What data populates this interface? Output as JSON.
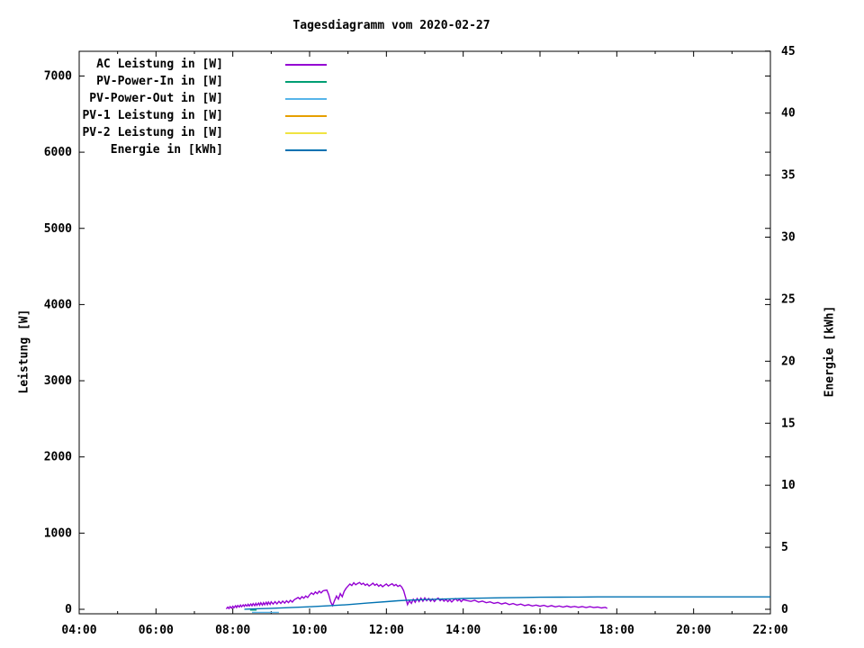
{
  "window": {
    "background": "#ffffff"
  },
  "chart_data": {
    "type": "line",
    "title": "Tagesdiagramm vom 2020-02-27",
    "ylabel": "Leistung [W]",
    "y2label": "Energie [kWh]",
    "grid": false,
    "legend_position": "top-left-inside",
    "x_axis": {
      "unit": "time of day",
      "range_hours": [
        4,
        22
      ],
      "tick_hours": [
        4,
        6,
        8,
        10,
        12,
        14,
        16,
        18,
        20,
        22
      ],
      "tick_labels": [
        "04:00",
        "06:00",
        "08:00",
        "10:00",
        "12:00",
        "14:00",
        "16:00",
        "18:00",
        "20:00",
        "22:00"
      ],
      "minor_tick_hours": [
        5,
        7,
        9,
        11,
        13,
        15,
        17,
        19,
        21
      ]
    },
    "y_axis": {
      "label": "Leistung [W]",
      "ticks": [
        0,
        1000,
        2000,
        3000,
        4000,
        5000,
        6000,
        7000
      ],
      "range": [
        -60,
        7330
      ]
    },
    "y2_axis": {
      "label": "Energie [kWh]",
      "ticks": [
        0,
        5,
        10,
        15,
        20,
        25,
        30,
        35,
        40,
        45
      ],
      "range": [
        -0.4,
        45
      ]
    },
    "series": [
      {
        "name": "AC Leistung in [W]",
        "color": "#9400d3",
        "axis": "y1",
        "points": [
          [
            7.83,
            5
          ],
          [
            7.87,
            28
          ],
          [
            7.9,
            10
          ],
          [
            7.93,
            35
          ],
          [
            7.97,
            15
          ],
          [
            8.0,
            40
          ],
          [
            8.03,
            20
          ],
          [
            8.07,
            46
          ],
          [
            8.1,
            24
          ],
          [
            8.13,
            50
          ],
          [
            8.17,
            30
          ],
          [
            8.2,
            55
          ],
          [
            8.23,
            34
          ],
          [
            8.27,
            58
          ],
          [
            8.3,
            38
          ],
          [
            8.33,
            62
          ],
          [
            8.37,
            42
          ],
          [
            8.4,
            66
          ],
          [
            8.43,
            44
          ],
          [
            8.47,
            70
          ],
          [
            8.5,
            46
          ],
          [
            8.53,
            74
          ],
          [
            8.57,
            48
          ],
          [
            8.6,
            78
          ],
          [
            8.63,
            52
          ],
          [
            8.67,
            82
          ],
          [
            8.7,
            54
          ],
          [
            8.73,
            86
          ],
          [
            8.77,
            56
          ],
          [
            8.8,
            88
          ],
          [
            8.83,
            60
          ],
          [
            8.87,
            92
          ],
          [
            8.9,
            62
          ],
          [
            8.93,
            95
          ],
          [
            8.97,
            64
          ],
          [
            9.0,
            98
          ],
          [
            9.05,
            68
          ],
          [
            9.1,
            100
          ],
          [
            9.15,
            72
          ],
          [
            9.2,
            104
          ],
          [
            9.25,
            78
          ],
          [
            9.3,
            108
          ],
          [
            9.35,
            82
          ],
          [
            9.4,
            112
          ],
          [
            9.45,
            88
          ],
          [
            9.5,
            118
          ],
          [
            9.55,
            95
          ],
          [
            9.6,
            125
          ],
          [
            9.65,
            140
          ],
          [
            9.7,
            155
          ],
          [
            9.75,
            135
          ],
          [
            9.8,
            165
          ],
          [
            9.85,
            145
          ],
          [
            9.9,
            175
          ],
          [
            9.95,
            155
          ],
          [
            10.0,
            190
          ],
          [
            10.05,
            215
          ],
          [
            10.1,
            195
          ],
          [
            10.15,
            228
          ],
          [
            10.2,
            205
          ],
          [
            10.25,
            238
          ],
          [
            10.3,
            215
          ],
          [
            10.35,
            242
          ],
          [
            10.4,
            248
          ],
          [
            10.45,
            252
          ],
          [
            10.5,
            190
          ],
          [
            10.55,
            95
          ],
          [
            10.6,
            48
          ],
          [
            10.65,
            115
          ],
          [
            10.7,
            175
          ],
          [
            10.75,
            135
          ],
          [
            10.8,
            205
          ],
          [
            10.85,
            165
          ],
          [
            10.9,
            235
          ],
          [
            10.95,
            275
          ],
          [
            11.0,
            305
          ],
          [
            11.05,
            332
          ],
          [
            11.1,
            312
          ],
          [
            11.15,
            348
          ],
          [
            11.2,
            322
          ],
          [
            11.25,
            338
          ],
          [
            11.3,
            352
          ],
          [
            11.35,
            326
          ],
          [
            11.4,
            342
          ],
          [
            11.45,
            316
          ],
          [
            11.5,
            332
          ],
          [
            11.55,
            306
          ],
          [
            11.6,
            322
          ],
          [
            11.65,
            342
          ],
          [
            11.7,
            316
          ],
          [
            11.75,
            332
          ],
          [
            11.8,
            302
          ],
          [
            11.85,
            322
          ],
          [
            11.9,
            296
          ],
          [
            11.95,
            316
          ],
          [
            12.0,
            332
          ],
          [
            12.05,
            306
          ],
          [
            12.1,
            322
          ],
          [
            12.15,
            336
          ],
          [
            12.2,
            310
          ],
          [
            12.25,
            326
          ],
          [
            12.3,
            300
          ],
          [
            12.35,
            316
          ],
          [
            12.4,
            292
          ],
          [
            12.45,
            245
          ],
          [
            12.5,
            155
          ],
          [
            12.55,
            62
          ],
          [
            12.6,
            112
          ],
          [
            12.65,
            78
          ],
          [
            12.7,
            132
          ],
          [
            12.75,
            92
          ],
          [
            12.8,
            142
          ],
          [
            12.85,
            102
          ],
          [
            12.9,
            146
          ],
          [
            12.95,
            106
          ],
          [
            13.0,
            150
          ],
          [
            13.05,
            112
          ],
          [
            13.1,
            142
          ],
          [
            13.15,
            106
          ],
          [
            13.2,
            136
          ],
          [
            13.25,
            102
          ],
          [
            13.3,
            132
          ],
          [
            13.35,
            146
          ],
          [
            13.4,
            112
          ],
          [
            13.45,
            136
          ],
          [
            13.5,
            106
          ],
          [
            13.55,
            130
          ],
          [
            13.6,
            100
          ],
          [
            13.65,
            126
          ],
          [
            13.7,
            96
          ],
          [
            13.75,
            120
          ],
          [
            13.8,
            140
          ],
          [
            13.85,
            110
          ],
          [
            13.9,
            130
          ],
          [
            13.95,
            100
          ],
          [
            14.0,
            126
          ],
          [
            14.1,
            114
          ],
          [
            14.2,
            104
          ],
          [
            14.3,
            118
          ],
          [
            14.4,
            94
          ],
          [
            14.5,
            108
          ],
          [
            14.6,
            86
          ],
          [
            14.7,
            98
          ],
          [
            14.8,
            78
          ],
          [
            14.9,
            90
          ],
          [
            15.0,
            70
          ],
          [
            15.1,
            84
          ],
          [
            15.2,
            62
          ],
          [
            15.3,
            76
          ],
          [
            15.4,
            56
          ],
          [
            15.5,
            68
          ],
          [
            15.6,
            48
          ],
          [
            15.7,
            60
          ],
          [
            15.8,
            44
          ],
          [
            15.9,
            56
          ],
          [
            16.0,
            40
          ],
          [
            16.1,
            52
          ],
          [
            16.2,
            36
          ],
          [
            16.3,
            48
          ],
          [
            16.4,
            32
          ],
          [
            16.5,
            44
          ],
          [
            16.6,
            30
          ],
          [
            16.7,
            42
          ],
          [
            16.8,
            28
          ],
          [
            16.9,
            38
          ],
          [
            17.0,
            26
          ],
          [
            17.1,
            36
          ],
          [
            17.2,
            24
          ],
          [
            17.3,
            34
          ],
          [
            17.4,
            22
          ],
          [
            17.5,
            30
          ],
          [
            17.6,
            18
          ],
          [
            17.7,
            26
          ],
          [
            17.75,
            12
          ]
        ]
      },
      {
        "name": "PV-Power-In in [W]",
        "color": "#009e73",
        "axis": "y1",
        "points": [
          [
            8.45,
            -10
          ],
          [
            8.62,
            -10
          ]
        ]
      },
      {
        "name": "PV-Power-Out in [W]",
        "color": "#56b4e9",
        "axis": "y1",
        "points": [
          [
            8.5,
            -40
          ],
          [
            9.2,
            -40
          ]
        ]
      },
      {
        "name": "PV-1 Leistung in [W]",
        "color": "#e69f00",
        "axis": "y1",
        "points": []
      },
      {
        "name": "PV-2 Leistung in [W]",
        "color": "#f0e442",
        "axis": "y1",
        "points": []
      },
      {
        "name": "Energie in [kWh]",
        "color": "#0072b2",
        "axis": "y2",
        "points": [
          [
            8.3,
            0.01
          ],
          [
            8.6,
            0.04
          ],
          [
            9.0,
            0.08
          ],
          [
            9.5,
            0.14
          ],
          [
            10.0,
            0.2
          ],
          [
            10.5,
            0.28
          ],
          [
            11.0,
            0.38
          ],
          [
            11.5,
            0.5
          ],
          [
            12.0,
            0.62
          ],
          [
            12.3,
            0.69
          ],
          [
            12.6,
            0.74
          ],
          [
            13.0,
            0.78
          ],
          [
            13.5,
            0.83
          ],
          [
            14.0,
            0.87
          ],
          [
            14.5,
            0.9
          ],
          [
            15.0,
            0.93
          ],
          [
            15.5,
            0.95
          ],
          [
            16.0,
            0.97
          ],
          [
            16.5,
            0.98
          ],
          [
            17.0,
            0.99
          ],
          [
            17.5,
            1.0
          ],
          [
            18.0,
            1.0
          ],
          [
            22.0,
            1.0
          ]
        ]
      }
    ]
  }
}
